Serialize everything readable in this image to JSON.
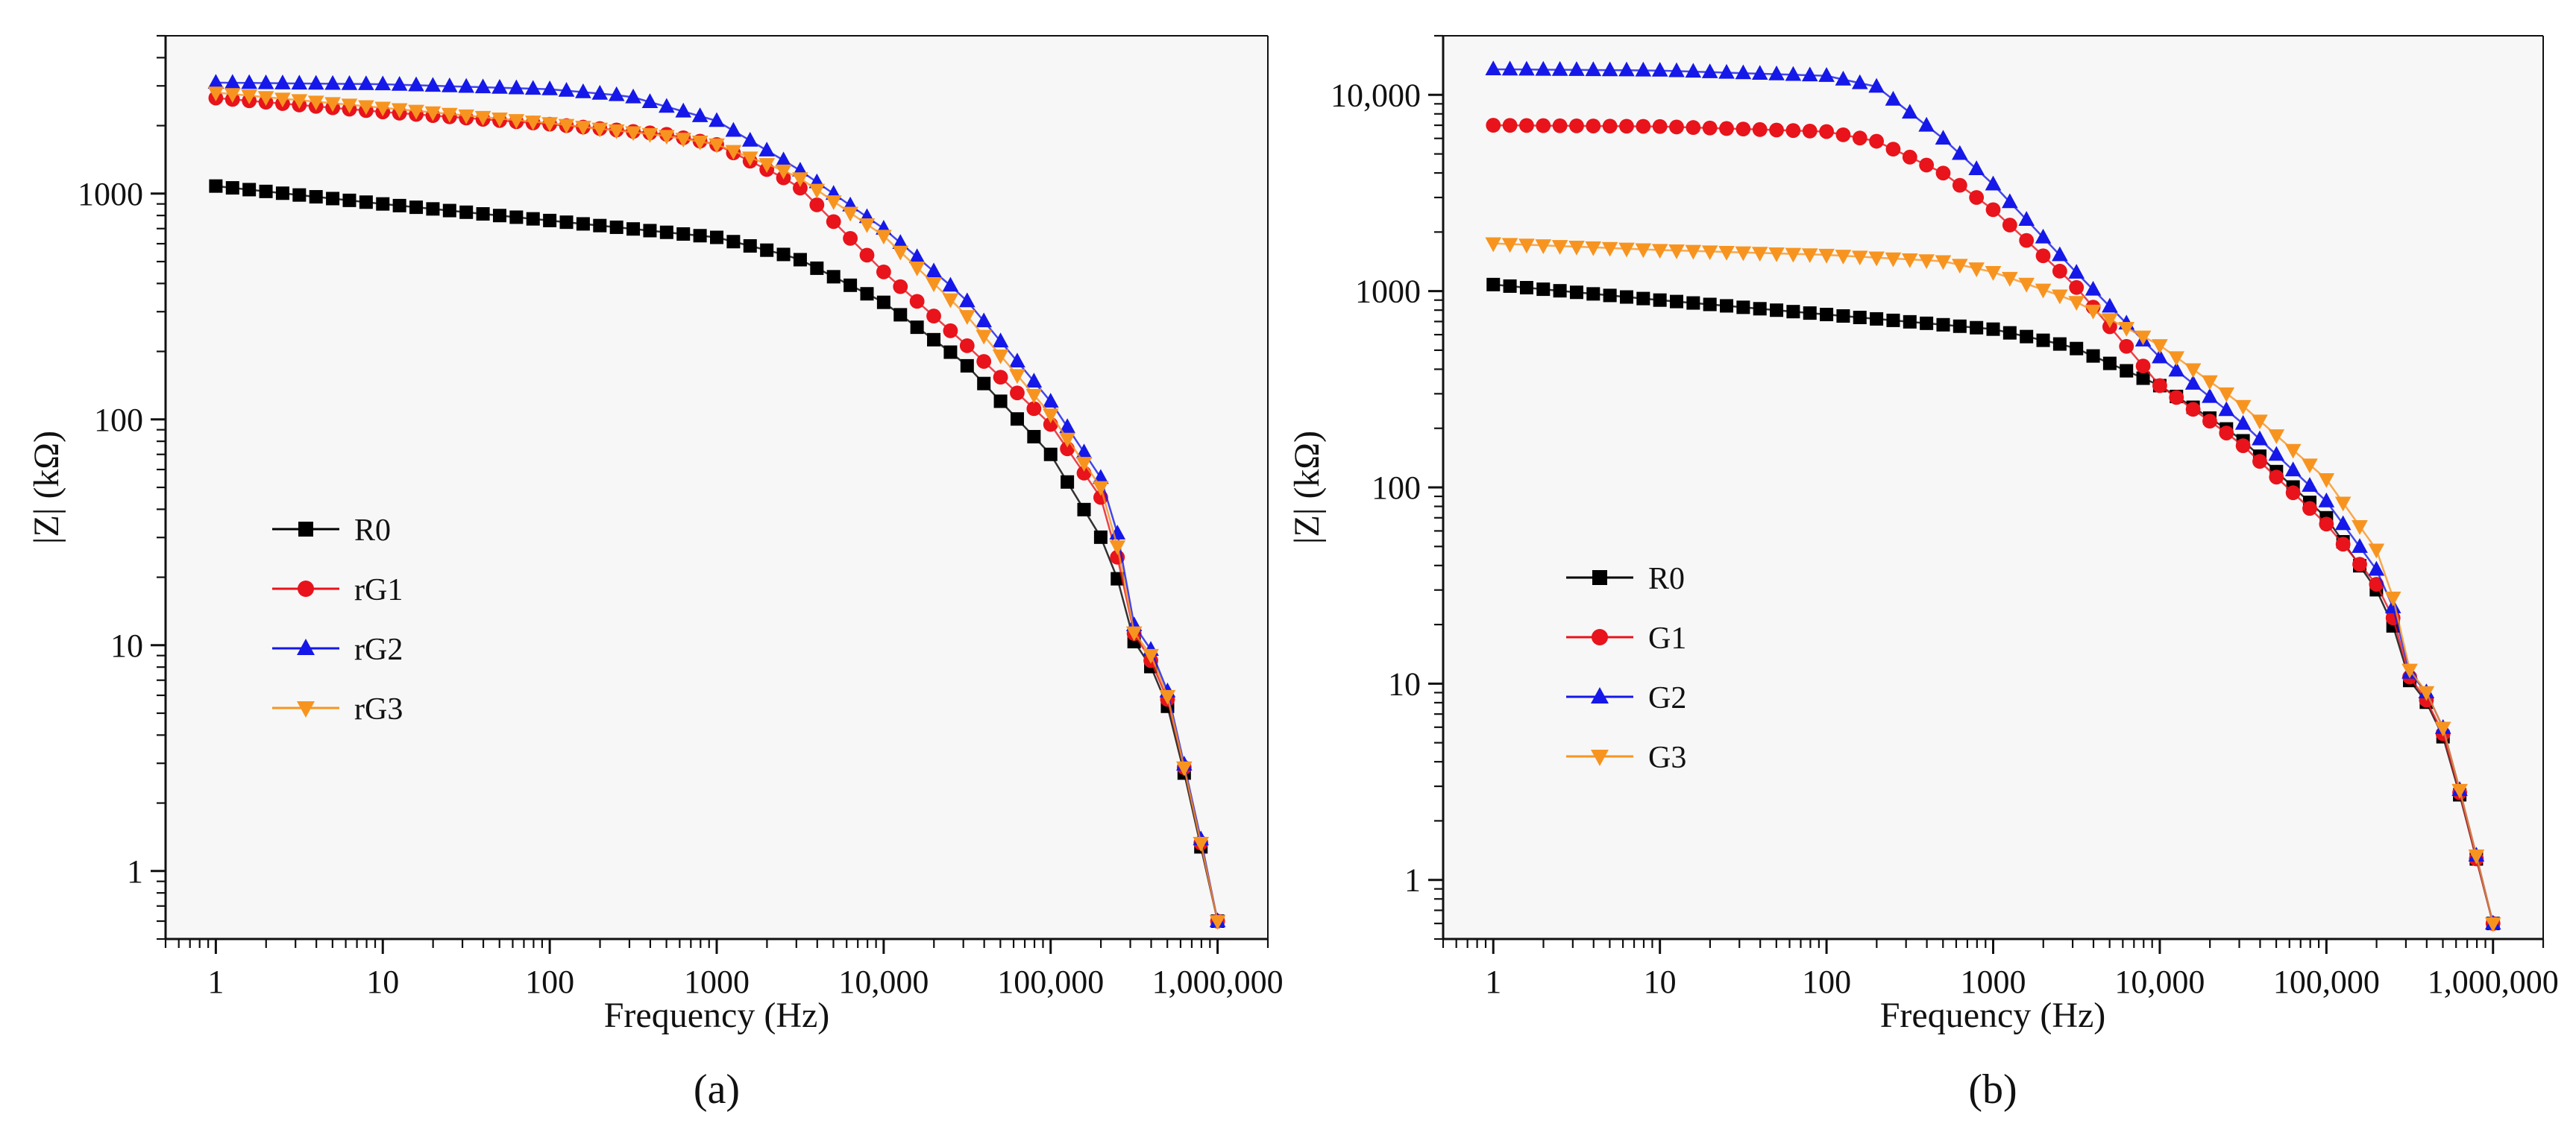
{
  "chart_data": [
    {
      "panel_label": "(a)",
      "type": "line",
      "xscale": "log",
      "yscale": "log",
      "xlabel": "Frequency  (Hz)",
      "ylabel": "|Z| (kΩ)",
      "xlim": [
        0.5,
        2000000
      ],
      "ylim": [
        0.5,
        5000
      ],
      "xticks": [
        1,
        10,
        100,
        1000,
        10000,
        100000,
        1000000
      ],
      "xtick_labels": [
        "1",
        "10",
        "100",
        "1000",
        "10,000",
        "100,000",
        "1,000,000"
      ],
      "yticks": [
        1,
        10,
        100,
        1000
      ],
      "ytick_labels": [
        "1",
        "10",
        "100",
        "1000"
      ],
      "legend_position": "left-middle",
      "series": [
        {
          "name": "R0",
          "color": "#000000",
          "marker": "square",
          "anchors": [
            [
              1,
              1080
            ],
            [
              10,
              900
            ],
            [
              100,
              760
            ],
            [
              1000,
              640
            ],
            [
              3000,
              520
            ],
            [
              10000,
              330
            ],
            [
              30000,
              180
            ],
            [
              100000,
              70
            ],
            [
              200000,
              30
            ],
            [
              250000,
              20
            ],
            [
              300000,
              11
            ],
            [
              400000,
              8
            ],
            [
              500000,
              5.4
            ],
            [
              600000,
              3.2
            ],
            [
              800000,
              1.25
            ],
            [
              1000000,
              0.6
            ]
          ]
        },
        {
          "name": "rG1",
          "color": "#e8131b",
          "marker": "circle",
          "anchors": [
            [
              1,
              2650
            ],
            [
              10,
              2300
            ],
            [
              100,
              2030
            ],
            [
              500,
              1830
            ],
            [
              1000,
              1650
            ],
            [
              3000,
              1100
            ],
            [
              10000,
              450
            ],
            [
              30000,
              220
            ],
            [
              100000,
              95
            ],
            [
              200000,
              45
            ],
            [
              250000,
              25
            ],
            [
              300000,
              12
            ],
            [
              400000,
              8.5
            ],
            [
              500000,
              5.8
            ],
            [
              600000,
              3.4
            ],
            [
              800000,
              1.3
            ],
            [
              1000000,
              0.6
            ]
          ]
        },
        {
          "name": "rG2",
          "color": "#1518e8",
          "marker": "triangle-up",
          "anchors": [
            [
              1,
              3100
            ],
            [
              10,
              3050
            ],
            [
              100,
              2900
            ],
            [
              300,
              2700
            ],
            [
              1000,
              2100
            ],
            [
              3000,
              1300
            ],
            [
              10000,
              700
            ],
            [
              30000,
              350
            ],
            [
              100000,
              120
            ],
            [
              200000,
              55
            ],
            [
              250000,
              32
            ],
            [
              300000,
              13
            ],
            [
              400000,
              9.5
            ],
            [
              500000,
              6.3
            ],
            [
              600000,
              3.5
            ],
            [
              800000,
              1.35
            ],
            [
              1000000,
              0.6
            ]
          ]
        },
        {
          "name": "rG3",
          "color": "#f79420",
          "marker": "triangle-down",
          "anchors": [
            [
              1,
              2800
            ],
            [
              10,
              2400
            ],
            [
              100,
              2050
            ],
            [
              500,
              1800
            ],
            [
              1000,
              1650
            ],
            [
              3000,
              1200
            ],
            [
              10000,
              650
            ],
            [
              30000,
              300
            ],
            [
              100000,
              105
            ],
            [
              200000,
              50
            ],
            [
              250000,
              28
            ],
            [
              300000,
              12
            ],
            [
              400000,
              9
            ],
            [
              500000,
              6
            ],
            [
              600000,
              3.4
            ],
            [
              800000,
              1.3
            ],
            [
              1000000,
              0.6
            ]
          ]
        }
      ]
    },
    {
      "panel_label": "(b)",
      "type": "line",
      "xscale": "log",
      "yscale": "log",
      "xlabel": "Frequency  (Hz)",
      "ylabel": "|Z| (kΩ)",
      "xlim": [
        0.5,
        2000000
      ],
      "ylim": [
        0.5,
        20000
      ],
      "xticks": [
        1,
        10,
        100,
        1000,
        10000,
        100000,
        1000000
      ],
      "xtick_labels": [
        "1",
        "10",
        "100",
        "1000",
        "10,000",
        "100,000",
        "1,000,000"
      ],
      "yticks": [
        1,
        10,
        100,
        1000,
        10000
      ],
      "ytick_labels": [
        "1",
        "10",
        "100",
        "1000",
        "10,000"
      ],
      "legend_position": "left-middle",
      "series": [
        {
          "name": "R0",
          "color": "#000000",
          "marker": "square",
          "anchors": [
            [
              1,
              1080
            ],
            [
              10,
              900
            ],
            [
              100,
              760
            ],
            [
              1000,
              640
            ],
            [
              3000,
              520
            ],
            [
              10000,
              330
            ],
            [
              30000,
              180
            ],
            [
              100000,
              70
            ],
            [
              200000,
              30
            ],
            [
              250000,
              20
            ],
            [
              300000,
              11
            ],
            [
              400000,
              8
            ],
            [
              500000,
              5.4
            ],
            [
              600000,
              3.2
            ],
            [
              800000,
              1.25
            ],
            [
              1000000,
              0.6
            ]
          ]
        },
        {
          "name": "G1",
          "color": "#e8131b",
          "marker": "circle",
          "anchors": [
            [
              1,
              7000
            ],
            [
              10,
              6900
            ],
            [
              100,
              6500
            ],
            [
              200,
              5800
            ],
            [
              500,
              4000
            ],
            [
              1000,
              2600
            ],
            [
              3000,
              1100
            ],
            [
              10000,
              330
            ],
            [
              30000,
              170
            ],
            [
              100000,
              65
            ],
            [
              200000,
              32
            ],
            [
              250000,
              22
            ],
            [
              300000,
              11.5
            ],
            [
              400000,
              8.2
            ],
            [
              500000,
              5.6
            ],
            [
              600000,
              3.3
            ],
            [
              800000,
              1.25
            ],
            [
              1000000,
              0.6
            ]
          ]
        },
        {
          "name": "G2",
          "color": "#1518e8",
          "marker": "triangle-up",
          "anchors": [
            [
              1,
              13500
            ],
            [
              10,
              13300
            ],
            [
              100,
              12500
            ],
            [
              200,
              11000
            ],
            [
              500,
              6000
            ],
            [
              1000,
              3500
            ],
            [
              3000,
              1300
            ],
            [
              10000,
              460
            ],
            [
              30000,
              220
            ],
            [
              100000,
              85
            ],
            [
              200000,
              38
            ],
            [
              250000,
              25
            ],
            [
              300000,
              12
            ],
            [
              400000,
              9
            ],
            [
              500000,
              6
            ],
            [
              600000,
              3.4
            ],
            [
              800000,
              1.3
            ],
            [
              1000000,
              0.6
            ]
          ]
        },
        {
          "name": "G3",
          "color": "#f79420",
          "marker": "triangle-down",
          "anchors": [
            [
              1,
              1750
            ],
            [
              10,
              1620
            ],
            [
              100,
              1530
            ],
            [
              500,
              1420
            ],
            [
              1000,
              1250
            ],
            [
              3000,
              900
            ],
            [
              10000,
              530
            ],
            [
              30000,
              270
            ],
            [
              100000,
              110
            ],
            [
              200000,
              48
            ],
            [
              250000,
              28
            ],
            [
              300000,
              12.5
            ],
            [
              400000,
              9
            ],
            [
              500000,
              6
            ],
            [
              600000,
              3.4
            ],
            [
              800000,
              1.3
            ],
            [
              1000000,
              0.6
            ]
          ]
        }
      ]
    }
  ]
}
